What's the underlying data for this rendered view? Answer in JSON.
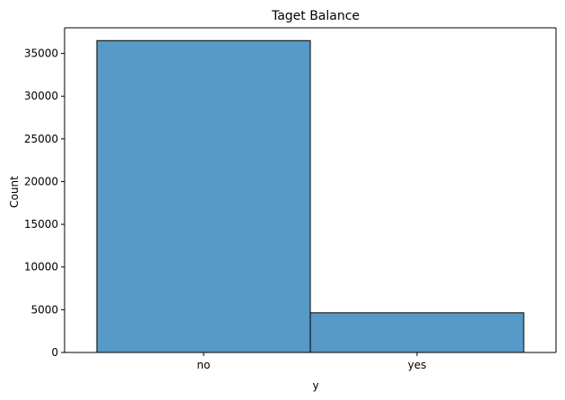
{
  "colors": {
    "bar_fill": "#5799c7",
    "bar_edge": "#000000",
    "axis": "#000000",
    "background": "#ffffff"
  },
  "chart_data": {
    "type": "bar",
    "title": "Taget Balance",
    "xlabel": "y",
    "ylabel": "Count",
    "categories": [
      "no",
      "yes"
    ],
    "values": [
      36500,
      4640
    ],
    "ylim": [
      0,
      38000
    ],
    "yticks": [
      0,
      5000,
      10000,
      15000,
      20000,
      25000,
      30000,
      35000
    ],
    "grid": false,
    "legend": "none"
  }
}
